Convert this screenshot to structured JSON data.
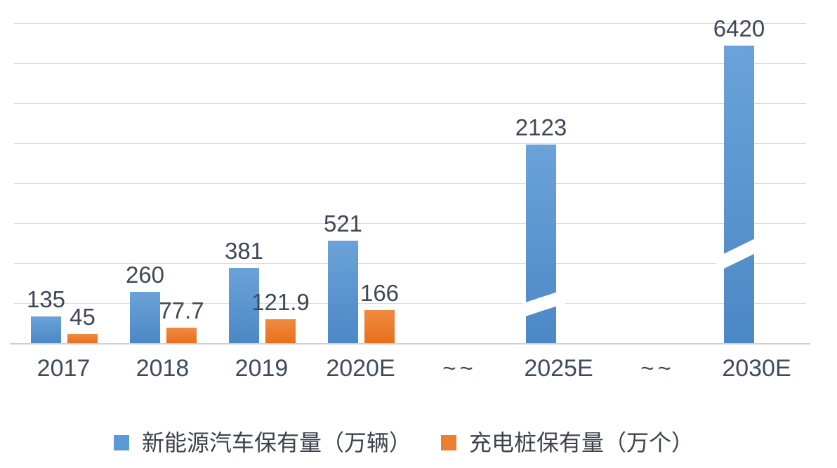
{
  "chart_data": {
    "type": "bar",
    "title": "",
    "xlabel": "",
    "ylabel": "",
    "categories": [
      "2017",
      "2018",
      "2019",
      "2020E",
      "~~",
      "2025E",
      "~~",
      "2030E"
    ],
    "series": [
      {
        "name": "新能源汽车保有量（万辆）",
        "color": "#5B9BD5",
        "values": [
          135,
          260,
          381,
          521,
          null,
          2123,
          null,
          6420
        ],
        "data_labels": [
          "135",
          "260",
          "381",
          "521",
          null,
          "2123",
          null,
          "6420"
        ]
      },
      {
        "name": "充电桩保有量（万个）",
        "color": "#ED7D31",
        "values": [
          45,
          77.7,
          121.9,
          166,
          null,
          null,
          null,
          null
        ],
        "data_labels": [
          "45",
          "77.7",
          "121.9",
          "166",
          null,
          null,
          null,
          null
        ]
      }
    ],
    "ylim": [
      0,
      1600
    ],
    "gridline_step": 200,
    "grid": true,
    "y_axis_labels_visible": false,
    "legend_position": "bottom",
    "axis_breaks": [
      {
        "category": "2025E",
        "series": "新能源汽车保有量（万辆）",
        "display_value": 1007,
        "gap_center_value": 196,
        "angle_deg": -18
      },
      {
        "category": "2030E",
        "series": "新能源汽车保有量（万辆）",
        "display_value": 1509,
        "gap_center_value": 455,
        "angle_deg": -26
      }
    ]
  },
  "legend": {
    "items": [
      {
        "label": "新能源汽车保有量（万辆）",
        "color": "#5B9BD5"
      },
      {
        "label": "充电桩保有量（万个）",
        "color": "#ED7D31"
      }
    ]
  }
}
